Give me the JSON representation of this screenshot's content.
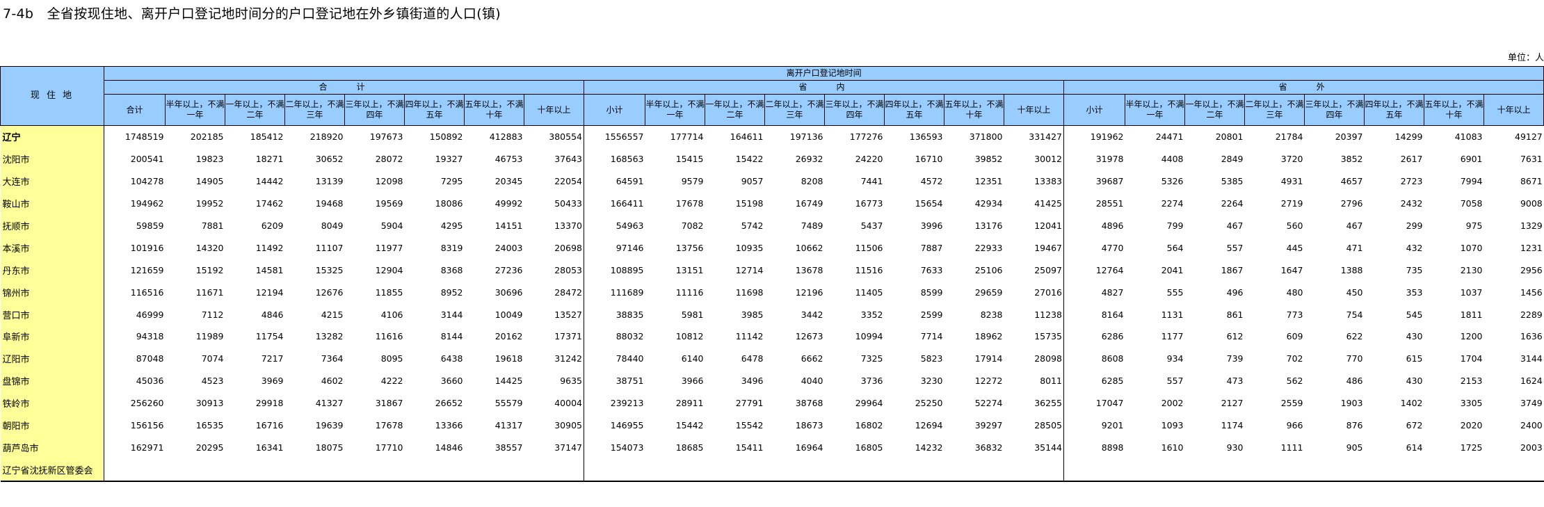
{
  "title": "7-4b　全省按现住地、离开户口登记地时间分的户口登记地在外乡镇街道的人口(镇)",
  "unit": "单位：人",
  "header": {
    "location": "现 住 地",
    "top": "离开户口登记地时间",
    "groups": [
      "合　　计",
      "省　　内",
      "省　　外"
    ],
    "columns": [
      [
        "合计",
        "半年以上，不满一年",
        "一年以上，不满二年",
        "二年以上，不满三年",
        "三年以上，不满四年",
        "四年以上，不满五年",
        "五年以上，不满十年",
        "十年以上"
      ],
      [
        "小计",
        "半年以上，不满一年",
        "一年以上，不满二年",
        "二年以上，不满三年",
        "三年以上，不满四年",
        "四年以上，不满五年",
        "五年以上，不满十年",
        "十年以上"
      ],
      [
        "小计",
        "半年以上，不满一年",
        "一年以上，不满二年",
        "二年以上，不满三年",
        "三年以上，不满四年",
        "四年以上，不满五年",
        "五年以上，不满十年",
        "十年以上"
      ]
    ]
  },
  "rows": [
    {
      "name": "辽宁",
      "total": true,
      "values": [
        "1748519",
        "202185",
        "185412",
        "218920",
        "197673",
        "150892",
        "412883",
        "380554",
        "1556557",
        "177714",
        "164611",
        "197136",
        "177276",
        "136593",
        "371800",
        "331427",
        "191962",
        "24471",
        "20801",
        "21784",
        "20397",
        "14299",
        "41083",
        "49127"
      ]
    },
    {
      "name": "沈阳市",
      "values": [
        "200541",
        "19823",
        "18271",
        "30652",
        "28072",
        "19327",
        "46753",
        "37643",
        "168563",
        "15415",
        "15422",
        "26932",
        "24220",
        "16710",
        "39852",
        "30012",
        "31978",
        "4408",
        "2849",
        "3720",
        "3852",
        "2617",
        "6901",
        "7631"
      ]
    },
    {
      "name": "大连市",
      "values": [
        "104278",
        "14905",
        "14442",
        "13139",
        "12098",
        "7295",
        "20345",
        "22054",
        "64591",
        "9579",
        "9057",
        "8208",
        "7441",
        "4572",
        "12351",
        "13383",
        "39687",
        "5326",
        "5385",
        "4931",
        "4657",
        "2723",
        "7994",
        "8671"
      ]
    },
    {
      "name": "鞍山市",
      "values": [
        "194962",
        "19952",
        "17462",
        "19468",
        "19569",
        "18086",
        "49992",
        "50433",
        "166411",
        "17678",
        "15198",
        "16749",
        "16773",
        "15654",
        "42934",
        "41425",
        "28551",
        "2274",
        "2264",
        "2719",
        "2796",
        "2432",
        "7058",
        "9008"
      ]
    },
    {
      "name": "抚顺市",
      "values": [
        "59859",
        "7881",
        "6209",
        "8049",
        "5904",
        "4295",
        "14151",
        "13370",
        "54963",
        "7082",
        "5742",
        "7489",
        "5437",
        "3996",
        "13176",
        "12041",
        "4896",
        "799",
        "467",
        "560",
        "467",
        "299",
        "975",
        "1329"
      ]
    },
    {
      "name": "本溪市",
      "values": [
        "101916",
        "14320",
        "11492",
        "11107",
        "11977",
        "8319",
        "24003",
        "20698",
        "97146",
        "13756",
        "10935",
        "10662",
        "11506",
        "7887",
        "22933",
        "19467",
        "4770",
        "564",
        "557",
        "445",
        "471",
        "432",
        "1070",
        "1231"
      ]
    },
    {
      "name": "丹东市",
      "values": [
        "121659",
        "15192",
        "14581",
        "15325",
        "12904",
        "8368",
        "27236",
        "28053",
        "108895",
        "13151",
        "12714",
        "13678",
        "11516",
        "7633",
        "25106",
        "25097",
        "12764",
        "2041",
        "1867",
        "1647",
        "1388",
        "735",
        "2130",
        "2956"
      ]
    },
    {
      "name": "锦州市",
      "values": [
        "116516",
        "11671",
        "12194",
        "12676",
        "11855",
        "8952",
        "30696",
        "28472",
        "111689",
        "11116",
        "11698",
        "12196",
        "11405",
        "8599",
        "29659",
        "27016",
        "4827",
        "555",
        "496",
        "480",
        "450",
        "353",
        "1037",
        "1456"
      ]
    },
    {
      "name": "营口市",
      "values": [
        "46999",
        "7112",
        "4846",
        "4215",
        "4106",
        "3144",
        "10049",
        "13527",
        "38835",
        "5981",
        "3985",
        "3442",
        "3352",
        "2599",
        "8238",
        "11238",
        "8164",
        "1131",
        "861",
        "773",
        "754",
        "545",
        "1811",
        "2289"
      ]
    },
    {
      "name": "阜新市",
      "values": [
        "94318",
        "11989",
        "11754",
        "13282",
        "11616",
        "8144",
        "20162",
        "17371",
        "88032",
        "10812",
        "11142",
        "12673",
        "10994",
        "7714",
        "18962",
        "15735",
        "6286",
        "1177",
        "612",
        "609",
        "622",
        "430",
        "1200",
        "1636"
      ]
    },
    {
      "name": "辽阳市",
      "values": [
        "87048",
        "7074",
        "7217",
        "7364",
        "8095",
        "6438",
        "19618",
        "31242",
        "78440",
        "6140",
        "6478",
        "6662",
        "7325",
        "5823",
        "17914",
        "28098",
        "8608",
        "934",
        "739",
        "702",
        "770",
        "615",
        "1704",
        "3144"
      ]
    },
    {
      "name": "盘锦市",
      "values": [
        "45036",
        "4523",
        "3969",
        "4602",
        "4222",
        "3660",
        "14425",
        "9635",
        "38751",
        "3966",
        "3496",
        "4040",
        "3736",
        "3230",
        "12272",
        "8011",
        "6285",
        "557",
        "473",
        "562",
        "486",
        "430",
        "2153",
        "1624"
      ]
    },
    {
      "name": "铁岭市",
      "values": [
        "256260",
        "30913",
        "29918",
        "41327",
        "31867",
        "26652",
        "55579",
        "40004",
        "239213",
        "28911",
        "27791",
        "38768",
        "29964",
        "25250",
        "52274",
        "36255",
        "17047",
        "2002",
        "2127",
        "2559",
        "1903",
        "1402",
        "3305",
        "3749"
      ]
    },
    {
      "name": "朝阳市",
      "values": [
        "156156",
        "16535",
        "16716",
        "19639",
        "17678",
        "13366",
        "41317",
        "30905",
        "146955",
        "15442",
        "15542",
        "18673",
        "16802",
        "12694",
        "39297",
        "28505",
        "9201",
        "1093",
        "1174",
        "966",
        "876",
        "672",
        "2020",
        "2400"
      ]
    },
    {
      "name": "葫芦岛市",
      "values": [
        "162971",
        "20295",
        "16341",
        "18075",
        "17710",
        "14846",
        "38557",
        "37147",
        "154073",
        "18685",
        "15411",
        "16964",
        "16805",
        "14232",
        "36832",
        "35144",
        "8898",
        "1610",
        "930",
        "1111",
        "905",
        "614",
        "1725",
        "2003"
      ]
    },
    {
      "name": "辽宁省沈抚新区管委会",
      "values": []
    }
  ]
}
